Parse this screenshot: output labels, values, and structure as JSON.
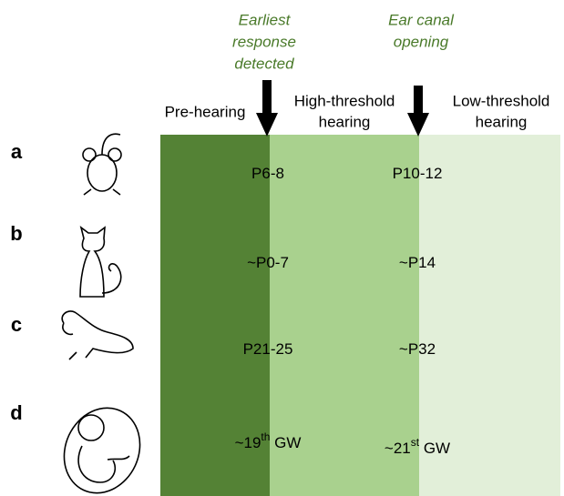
{
  "markers": [
    {
      "lines": [
        "Earliest",
        "response",
        "detected"
      ]
    },
    {
      "lines": [
        "Ear canal",
        "opening"
      ]
    }
  ],
  "phases": [
    {
      "lines": [
        "Pre-hearing"
      ]
    },
    {
      "lines": [
        "High-threshold",
        "hearing"
      ]
    },
    {
      "lines": [
        "Low-threshold",
        "hearing"
      ]
    }
  ],
  "rows": [
    {
      "label": "a",
      "earliest": {
        "base": "P6-8"
      },
      "ear_canal": {
        "base": "P10-12"
      }
    },
    {
      "label": "b",
      "earliest": {
        "base": "~P0-7"
      },
      "ear_canal": {
        "base": "~P14"
      }
    },
    {
      "label": "c",
      "earliest": {
        "base": "P21-25"
      },
      "ear_canal": {
        "base": "~P32"
      }
    },
    {
      "label": "d",
      "earliest": {
        "base": "~19",
        "sup": "th",
        "after": " GW"
      },
      "ear_canal": {
        "base": "~21",
        "sup": "st",
        "after": " GW"
      }
    }
  ]
}
